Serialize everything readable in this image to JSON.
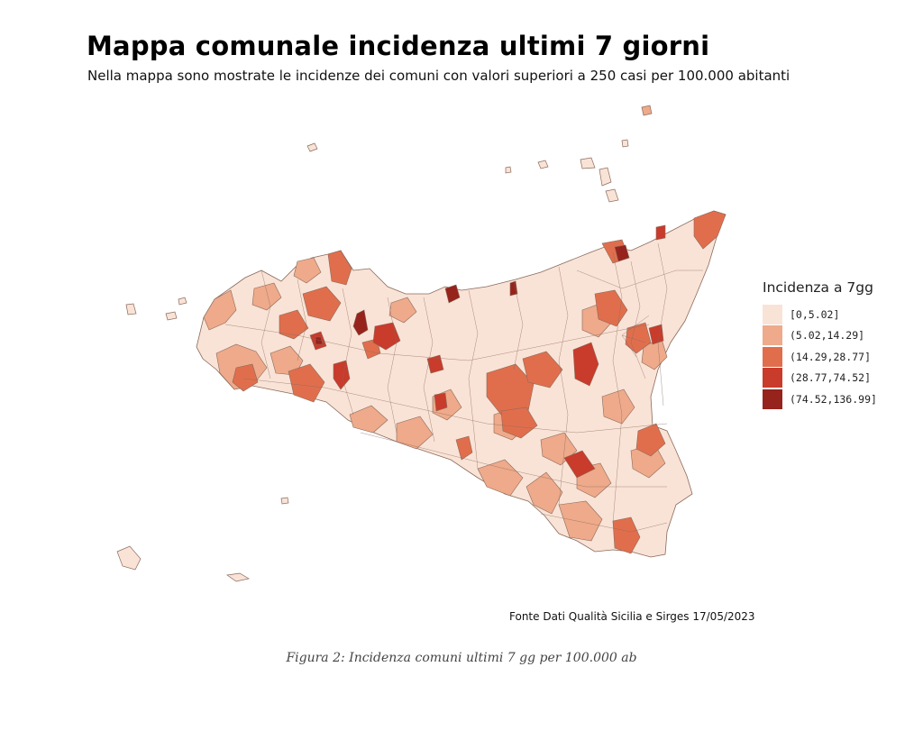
{
  "title": "Mappa comunale incidenza ultimi 7 giorni",
  "subtitle": "Nella mappa sono mostrate le incidenze dei comuni con valori superiori a 250 casi per 100.000 abitanti",
  "legend": {
    "title": "Incidenza a 7gg",
    "classes": [
      {
        "label": "[0,5.02]",
        "color": "#f9e3d6"
      },
      {
        "label": "(5.02,14.29]",
        "color": "#eeaa8a"
      },
      {
        "label": "(14.29,28.77]",
        "color": "#e06e4c"
      },
      {
        "label": "(28.77,74.52]",
        "color": "#c93b2b"
      },
      {
        "label": "(74.52,136.99]",
        "color": "#96231c"
      }
    ]
  },
  "source": "Fonte Dati Qualità Sicilia e Sirges 17/05/2023",
  "caption": "Figura 2: Incidenza comuni ultimi 7 gg per 100.000 ab",
  "colors": {
    "outline": "#8a6a5c",
    "background": "#ffffff"
  }
}
